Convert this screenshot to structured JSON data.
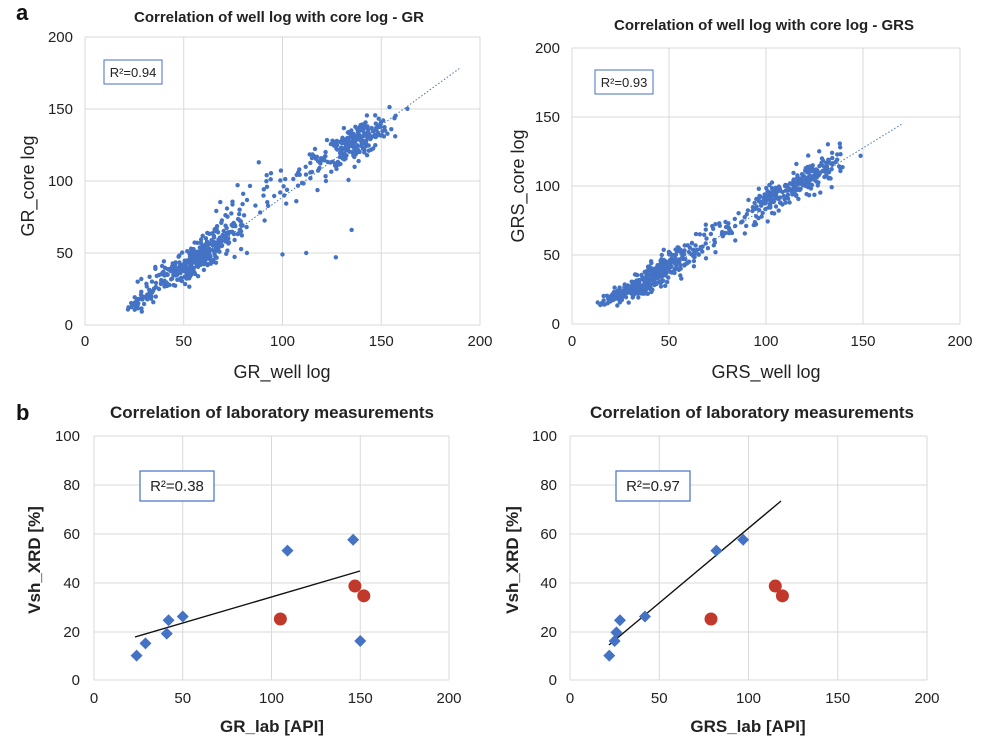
{
  "panel_labels": {
    "a": "a",
    "b": "b"
  },
  "chart_data": [
    {
      "id": "gr_well_core",
      "type": "scatter",
      "title": "Correlation of well log with core log - GR",
      "xlabel": "GR_well log",
      "ylabel": "GR_core log",
      "xlim": [
        0,
        200
      ],
      "ylim": [
        0,
        200
      ],
      "xticks": [
        0,
        50,
        100,
        150,
        200
      ],
      "yticks": [
        0,
        50,
        100,
        150,
        200
      ],
      "grid": true,
      "r2_label": "R²=0.94",
      "trendline": {
        "style": "dotted",
        "x": [
          30,
          190
        ],
        "y": [
          20,
          180
        ]
      },
      "point_color": "#4472C4",
      "point_groups": [
        {
          "x": 30,
          "y": 18,
          "sx": 4,
          "sy": 5,
          "n": 40
        },
        {
          "x": 45,
          "y": 35,
          "sx": 8,
          "sy": 8,
          "n": 100
        },
        {
          "x": 60,
          "y": 50,
          "sx": 7,
          "sy": 9,
          "n": 180
        },
        {
          "x": 70,
          "y": 62,
          "sx": 8,
          "sy": 10,
          "n": 50
        },
        {
          "x": 80,
          "y": 80,
          "sx": 12,
          "sy": 15,
          "n": 25
        },
        {
          "x": 100,
          "y": 95,
          "sx": 12,
          "sy": 12,
          "n": 20
        },
        {
          "x": 120,
          "y": 112,
          "sx": 8,
          "sy": 10,
          "n": 30
        },
        {
          "x": 138,
          "y": 128,
          "sx": 8,
          "sy": 10,
          "n": 220
        }
      ],
      "outliers": [
        {
          "x": 88,
          "y": 113
        },
        {
          "x": 82,
          "y": 50
        },
        {
          "x": 100,
          "y": 49
        },
        {
          "x": 112,
          "y": 50
        },
        {
          "x": 127,
          "y": 47
        },
        {
          "x": 135,
          "y": 66
        },
        {
          "x": 107,
          "y": 86
        },
        {
          "x": 122,
          "y": 100
        },
        {
          "x": 92,
          "y": 104
        }
      ]
    },
    {
      "id": "grs_well_core",
      "type": "scatter",
      "title": "Correlation of well log with core log - GRS",
      "xlabel": "GRS_well log",
      "ylabel": "GRS_core log",
      "xlim": [
        0,
        200
      ],
      "ylim": [
        0,
        200
      ],
      "xticks": [
        0,
        50,
        100,
        150,
        200
      ],
      "yticks": [
        0,
        50,
        100,
        150,
        200
      ],
      "grid": true,
      "r2_label": "R²=0.93",
      "trendline": {
        "style": "dotted",
        "x": [
          20,
          170
        ],
        "y": [
          15,
          145
        ]
      },
      "point_color": "#4472C4",
      "point_groups": [
        {
          "x": 22,
          "y": 20,
          "sx": 3,
          "sy": 3,
          "n": 50
        },
        {
          "x": 32,
          "y": 25,
          "sx": 6,
          "sy": 6,
          "n": 120
        },
        {
          "x": 45,
          "y": 38,
          "sx": 6,
          "sy": 8,
          "n": 160
        },
        {
          "x": 60,
          "y": 50,
          "sx": 8,
          "sy": 8,
          "n": 60
        },
        {
          "x": 80,
          "y": 68,
          "sx": 8,
          "sy": 8,
          "n": 40
        },
        {
          "x": 105,
          "y": 92,
          "sx": 8,
          "sy": 8,
          "n": 130
        },
        {
          "x": 125,
          "y": 108,
          "sx": 8,
          "sy": 10,
          "n": 120
        }
      ],
      "outliers": []
    },
    {
      "id": "gr_lab_vsh",
      "type": "scatter",
      "title": "Correlation of laboratory measurements",
      "xlabel": "GR_lab [API]",
      "ylabel": "Vsh_XRD [%]",
      "xlim": [
        0,
        200
      ],
      "ylim": [
        0,
        100
      ],
      "xticks": [
        0,
        50,
        100,
        150,
        200
      ],
      "yticks": [
        0,
        20,
        40,
        60,
        80,
        100
      ],
      "grid": true,
      "r2_label": "R²=0.38",
      "trendline": {
        "style": "solid",
        "x": [
          23,
          150
        ],
        "y": [
          17.5,
          44.5
        ]
      },
      "series": [
        {
          "marker": "diamond",
          "color": "#4472C4",
          "x": [
            24,
            29,
            41,
            42,
            50,
            109,
            146,
            150
          ],
          "y": [
            10,
            15,
            19,
            24.5,
            26,
            53,
            57.5,
            16
          ]
        },
        {
          "marker": "circle",
          "color": "#C0392B",
          "x": [
            105,
            147,
            152
          ],
          "y": [
            25,
            38.5,
            34.5
          ]
        }
      ]
    },
    {
      "id": "grs_lab_vsh",
      "type": "scatter",
      "title": "Correlation of laboratory measurements",
      "xlabel": "GRS_lab [API]",
      "ylabel": "Vsh_XRD [%]",
      "xlim": [
        0,
        200
      ],
      "ylim": [
        0,
        100
      ],
      "xticks": [
        0,
        50,
        100,
        150,
        200
      ],
      "yticks": [
        0,
        20,
        40,
        60,
        80,
        100
      ],
      "grid": true,
      "r2_label": "R²=0.97",
      "trendline": {
        "style": "solid",
        "x": [
          22,
          118
        ],
        "y": [
          14,
          73
        ]
      },
      "series": [
        {
          "marker": "diamond",
          "color": "#4472C4",
          "x": [
            22,
            25,
            26,
            28,
            42,
            82,
            97
          ],
          "y": [
            10,
            16,
            19.5,
            24.5,
            26,
            53,
            57.5
          ]
        },
        {
          "marker": "circle",
          "color": "#C0392B",
          "x": [
            79,
            115,
            119
          ],
          "y": [
            25,
            38.5,
            34.5
          ]
        }
      ]
    }
  ]
}
